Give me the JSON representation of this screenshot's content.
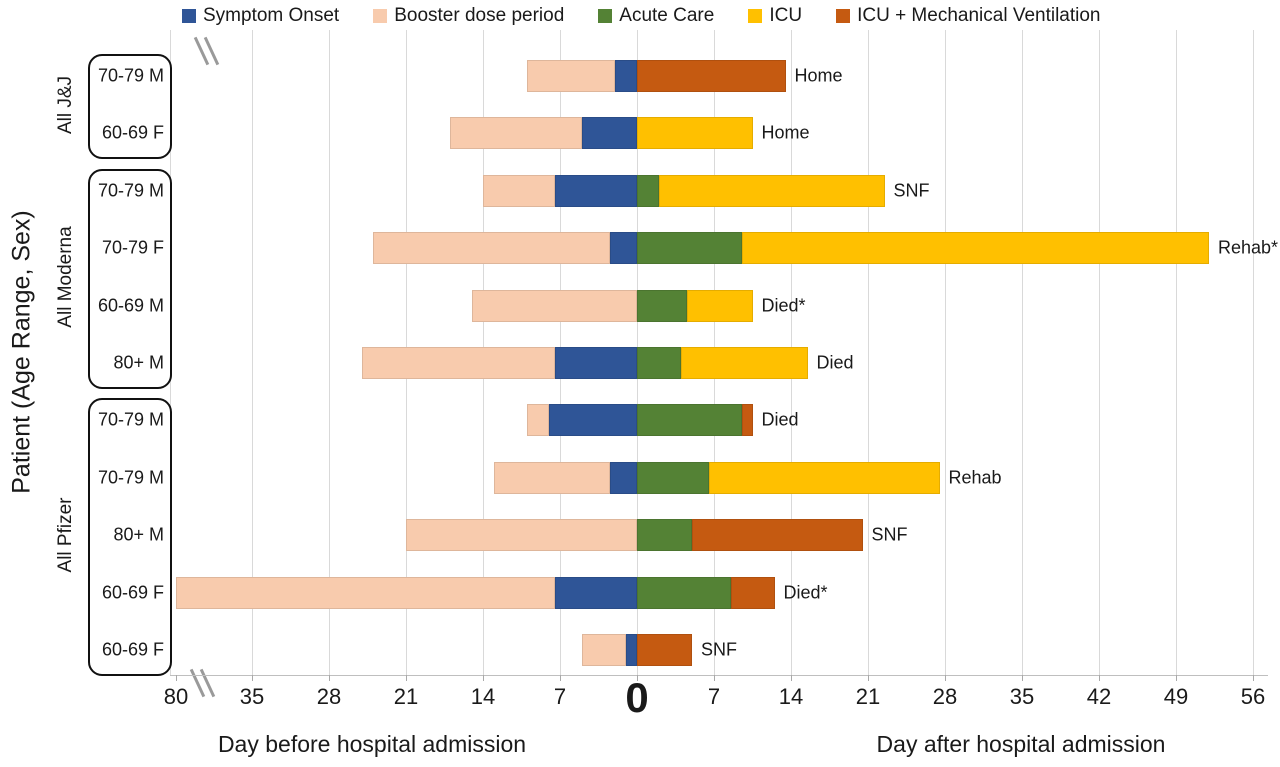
{
  "chart_data": {
    "type": "bar",
    "subtype": "horizontal-stacked-timeline",
    "title": "",
    "ylabel": "Patient (Age Range, Sex)",
    "xlabel_before": "Day before hospital admission",
    "xlabel_after": "Day after hospital admission",
    "zero_tick": "0",
    "x_unit": "days relative to hospital admission",
    "axis_break": {
      "between": [
        -80,
        -35
      ]
    },
    "x_ticks_before": [
      80,
      35,
      28,
      21,
      14,
      7
    ],
    "x_ticks_after": [
      7,
      14,
      21,
      28,
      35,
      42,
      49,
      56
    ],
    "grid": true,
    "legend_position": "top",
    "colors": {
      "grid": "#D9D9D9",
      "axis_text": "#1A1A1A"
    },
    "series": [
      {
        "key": "symptom",
        "label": "Symptom Onset",
        "color": "#2F5597"
      },
      {
        "key": "booster",
        "label": "Booster dose period",
        "color": "#F8CBAD"
      },
      {
        "key": "acute",
        "label": "Acute Care",
        "color": "#548235"
      },
      {
        "key": "icu",
        "label": "ICU",
        "color": "#FFC000"
      },
      {
        "key": "icu_mv",
        "label": "ICU + Mechanical Ventilation",
        "color": "#C55A11"
      }
    ],
    "groups": [
      {
        "name": "All J&J",
        "patients": [
          {
            "label": "70-79 M",
            "outcome": "Home",
            "segments": [
              {
                "type": "booster",
                "start": -10,
                "end": -2
              },
              {
                "type": "symptom",
                "start": -2,
                "end": 0
              },
              {
                "type": "icu_mv",
                "start": 0,
                "end": 13.5
              }
            ]
          },
          {
            "label": "60-69 F",
            "outcome": "Home",
            "segments": [
              {
                "type": "booster",
                "start": -17,
                "end": -5
              },
              {
                "type": "symptom",
                "start": -5,
                "end": 0
              },
              {
                "type": "icu",
                "start": 0,
                "end": 10.5
              }
            ]
          }
        ]
      },
      {
        "name": "All Moderna",
        "patients": [
          {
            "label": "70-79 M",
            "outcome": "SNF",
            "segments": [
              {
                "type": "booster",
                "start": -14,
                "end": -7.5
              },
              {
                "type": "symptom",
                "start": -7.5,
                "end": 0
              },
              {
                "type": "acute",
                "start": 0,
                "end": 2
              },
              {
                "type": "icu",
                "start": 2,
                "end": 22.5
              }
            ]
          },
          {
            "label": "70-79 F",
            "outcome": "Rehab*",
            "segments": [
              {
                "type": "booster",
                "start": -24,
                "end": -2.5
              },
              {
                "type": "symptom",
                "start": -2.5,
                "end": 0
              },
              {
                "type": "acute",
                "start": 0,
                "end": 9.5
              },
              {
                "type": "icu",
                "start": 9.5,
                "end": 52
              }
            ]
          },
          {
            "label": "60-69 M",
            "outcome": "Died*",
            "segments": [
              {
                "type": "booster",
                "start": -15,
                "end": 0
              },
              {
                "type": "acute",
                "start": 0,
                "end": 4.5
              },
              {
                "type": "icu",
                "start": 4.5,
                "end": 10.5
              }
            ]
          },
          {
            "label": "80+ M",
            "outcome": "Died",
            "segments": [
              {
                "type": "booster",
                "start": -25,
                "end": -7.5
              },
              {
                "type": "symptom",
                "start": -7.5,
                "end": 0
              },
              {
                "type": "acute",
                "start": 0,
                "end": 4
              },
              {
                "type": "icu",
                "start": 4,
                "end": 15.5
              }
            ]
          }
        ]
      },
      {
        "name": "All Pfizer",
        "patients": [
          {
            "label": "70-79 M",
            "outcome": "Died",
            "segments": [
              {
                "type": "booster",
                "start": -10,
                "end": -8
              },
              {
                "type": "symptom",
                "start": -8,
                "end": 0
              },
              {
                "type": "acute",
                "start": 0,
                "end": 9.5
              },
              {
                "type": "icu_mv",
                "start": 9.5,
                "end": 10.5
              }
            ]
          },
          {
            "label": "70-79 M",
            "outcome": "Rehab",
            "segments": [
              {
                "type": "booster",
                "start": -13,
                "end": -2.5
              },
              {
                "type": "symptom",
                "start": -2.5,
                "end": 0
              },
              {
                "type": "acute",
                "start": 0,
                "end": 6.5
              },
              {
                "type": "icu",
                "start": 6.5,
                "end": 27.5
              }
            ]
          },
          {
            "label": "80+ M",
            "outcome": "SNF",
            "segments": [
              {
                "type": "booster",
                "start": -21,
                "end": 0
              },
              {
                "type": "acute",
                "start": 0,
                "end": 5
              },
              {
                "type": "icu_mv",
                "start": 5,
                "end": 20.5
              }
            ]
          },
          {
            "label": "60-69 F",
            "outcome": "Died*",
            "segments": [
              {
                "type": "booster",
                "start": -80,
                "end": -7.5
              },
              {
                "type": "symptom",
                "start": -7.5,
                "end": 0
              },
              {
                "type": "acute",
                "start": 0,
                "end": 8.5
              },
              {
                "type": "icu_mv",
                "start": 8.5,
                "end": 12.5
              }
            ]
          },
          {
            "label": "60-69 F",
            "outcome": "SNF",
            "segments": [
              {
                "type": "booster",
                "start": -5,
                "end": -1
              },
              {
                "type": "symptom",
                "start": -1,
                "end": 0
              },
              {
                "type": "icu_mv",
                "start": 0,
                "end": 5
              }
            ]
          }
        ]
      }
    ]
  }
}
